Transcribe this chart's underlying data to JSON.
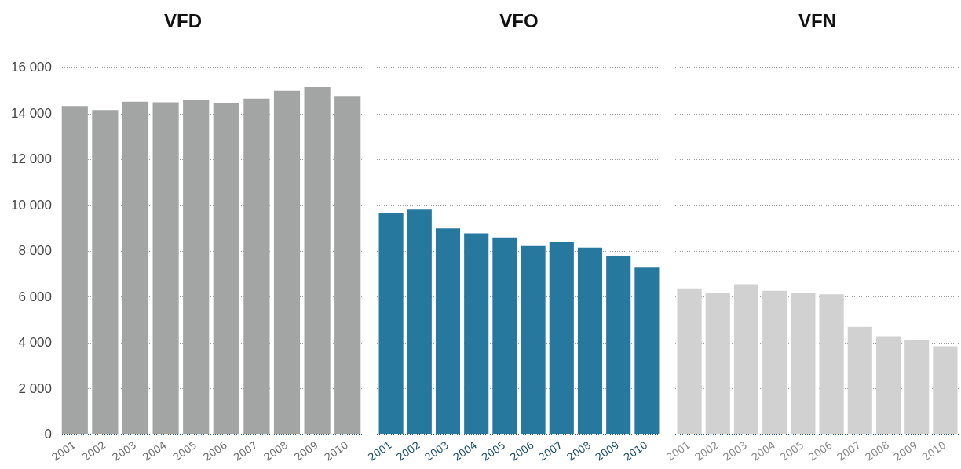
{
  "chart_data": [
    {
      "type": "bar",
      "title": "VFD",
      "categories": [
        "2001",
        "2002",
        "2003",
        "2004",
        "2005",
        "2006",
        "2007",
        "2008",
        "2009",
        "2010"
      ],
      "values": [
        14340,
        14170,
        14530,
        14500,
        14620,
        14490,
        14670,
        15010,
        15170,
        14750
      ],
      "color": "#a3a5a4",
      "ylim": [
        0,
        16000
      ],
      "yticks": [
        0,
        {
          "value": 2000,
          "label": "2 000"
        },
        {
          "value": 4000,
          "label": "4 000"
        },
        {
          "value": 6000,
          "label": "6 000"
        },
        {
          "value": 8000,
          "label": "8 000"
        },
        {
          "value": 10000,
          "label": "10 000"
        },
        {
          "value": 12000,
          "label": "12 000"
        },
        {
          "value": 14000,
          "label": "14 000"
        },
        {
          "value": 16000,
          "label": "16 000"
        }
      ],
      "grid": "y"
    },
    {
      "type": "bar",
      "title": "VFO",
      "categories": [
        "2001",
        "2002",
        "2003",
        "2004",
        "2005",
        "2006",
        "2007",
        "2008",
        "2009",
        "2010"
      ],
      "values": [
        9690,
        9820,
        9000,
        8790,
        8610,
        8230,
        8400,
        8160,
        7780,
        7290
      ],
      "color": "#27789f",
      "ylim": [
        0,
        16000
      ],
      "yticks": [
        {
          "value": 0,
          "label": null
        },
        {
          "value": 2000,
          "label": null
        },
        {
          "value": 4000,
          "label": null
        },
        {
          "value": 6000,
          "label": null
        },
        {
          "value": 8000,
          "label": null
        },
        {
          "value": 10000,
          "label": null
        },
        {
          "value": 12000,
          "label": null
        },
        {
          "value": 14000,
          "label": null
        },
        {
          "value": 16000,
          "label": null
        }
      ],
      "grid": "y",
      "tick_labels": "x"
    },
    {
      "type": "bar",
      "title": "VFN",
      "categories": [
        "2001",
        "2002",
        "2003",
        "2004",
        "2005",
        "2006",
        "2007",
        "2008",
        "2009",
        "2010"
      ],
      "values": [
        6380,
        6190,
        6560,
        6280,
        6200,
        6130,
        4710,
        4270,
        4140,
        3860
      ],
      "color": "#d1d1d1",
      "ylim": [
        0,
        16000
      ],
      "yticks": [
        {
          "value": 0,
          "label": null
        },
        {
          "value": 2000,
          "label": null
        },
        {
          "value": 4000,
          "label": null
        },
        {
          "value": 6000,
          "label": null
        },
        {
          "value": 8000,
          "label": null
        },
        {
          "value": 10000,
          "label": null
        },
        {
          "value": 12000,
          "label": null
        },
        {
          "value": 14000,
          "label": null
        },
        {
          "value": 16000,
          "label": null
        }
      ],
      "grid": "y",
      "tick_labels": "x"
    }
  ]
}
